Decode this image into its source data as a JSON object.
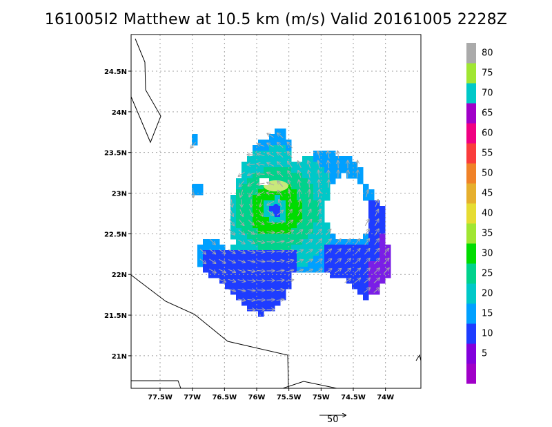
{
  "title": "161005I2 Matthew at 10.5 km (m/s) Valid 20161005 2228Z",
  "map": {
    "lon_range": [
      -77.95,
      -73.45
    ],
    "lat_range": [
      20.6,
      24.95
    ],
    "lon_ticks": [
      {
        "value": -77.5,
        "label": "77.5W"
      },
      {
        "value": -77.0,
        "label": "77W"
      },
      {
        "value": -76.5,
        "label": "76.5W"
      },
      {
        "value": -76.0,
        "label": "76W"
      },
      {
        "value": -75.5,
        "label": "75.5W"
      },
      {
        "value": -75.0,
        "label": "75W"
      },
      {
        "value": -74.5,
        "label": "74.5W"
      },
      {
        "value": -74.0,
        "label": "74W"
      }
    ],
    "lat_ticks": [
      {
        "value": 24.5,
        "label": "24.5N"
      },
      {
        "value": 24.0,
        "label": "24N"
      },
      {
        "value": 23.5,
        "label": "23.5N"
      },
      {
        "value": 23.0,
        "label": "23N"
      },
      {
        "value": 22.5,
        "label": "22.5N"
      },
      {
        "value": 22.0,
        "label": "22N"
      },
      {
        "value": 21.5,
        "label": "21.5N"
      },
      {
        "value": 21.0,
        "label": "21N"
      }
    ],
    "grid": true,
    "storm_center": {
      "lon": -75.7,
      "lat": 22.8
    },
    "eye_wind": 12,
    "vector_reference": {
      "label": "50",
      "value": 50
    }
  },
  "colorbar": {
    "levels": [
      {
        "label": "",
        "color": "#a000c8"
      },
      {
        "label": "5",
        "color": "#8200dc"
      },
      {
        "label": "10",
        "color": "#1e3cff"
      },
      {
        "label": "15",
        "color": "#00a0ff"
      },
      {
        "label": "20",
        "color": "#00c8c8"
      },
      {
        "label": "25",
        "color": "#00d28c"
      },
      {
        "label": "30",
        "color": "#00dc00"
      },
      {
        "label": "35",
        "color": "#a0e632"
      },
      {
        "label": "40",
        "color": "#e6dc32"
      },
      {
        "label": "45",
        "color": "#e6af2d"
      },
      {
        "label": "50",
        "color": "#f08228"
      },
      {
        "label": "55",
        "color": "#fa3c3c"
      },
      {
        "label": "60",
        "color": "#f00082"
      },
      {
        "label": "65",
        "color": "#a000c8"
      },
      {
        "label": "70",
        "color": "#00c8c8"
      },
      {
        "label": "75",
        "color": "#a0e632"
      },
      {
        "label": "80",
        "color": "#aaaaaa"
      }
    ]
  },
  "colors": {
    "coastline": "#000000",
    "grid": "#a0a0a0",
    "vector": "#a8a8a8"
  }
}
